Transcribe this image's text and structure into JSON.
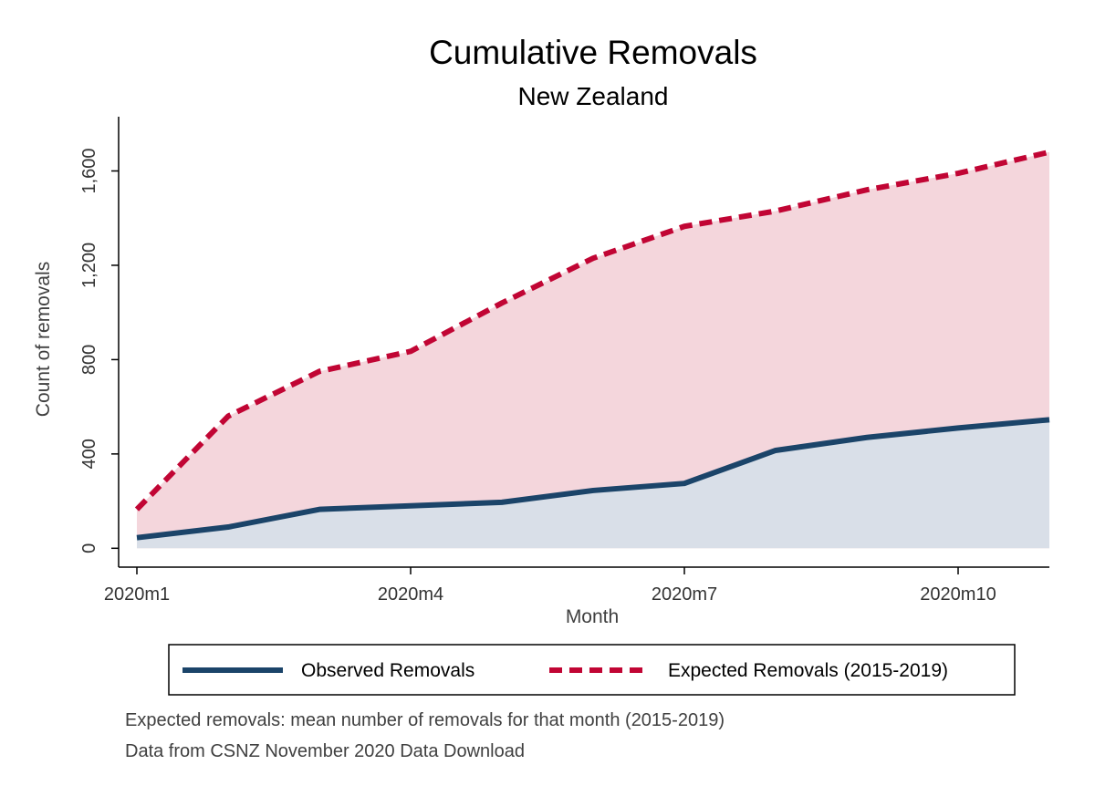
{
  "chart_data": {
    "type": "area",
    "title": "Cumulative Removals",
    "subtitle": "New Zealand",
    "xlabel": "Month",
    "ylabel": "Count of removals",
    "x": [
      "2020m1",
      "2020m2",
      "2020m3",
      "2020m4",
      "2020m5",
      "2020m6",
      "2020m7",
      "2020m8",
      "2020m9",
      "2020m10",
      "2020m11"
    ],
    "x_ticks": [
      "2020m1",
      "2020m4",
      "2020m7",
      "2020m10"
    ],
    "y_ticks": [
      0,
      400,
      800,
      1200,
      1600
    ],
    "y_tick_labels": [
      "0",
      "400",
      "800",
      "1,200",
      "1,600"
    ],
    "ylim": [
      -80,
      1830
    ],
    "grid": false,
    "legend_position": "bottom",
    "series": [
      {
        "name": "Observed Removals",
        "style": "solid",
        "color": "#1b4469",
        "fill_color": "#d9dfe8",
        "values": [
          45,
          90,
          165,
          180,
          195,
          245,
          275,
          415,
          470,
          510,
          545
        ]
      },
      {
        "name": "Expected Removals (2015-2019)",
        "style": "dashed",
        "color": "#c10534",
        "fill_color": "#f4d6dc",
        "values": [
          165,
          560,
          750,
          835,
          1040,
          1230,
          1365,
          1430,
          1520,
          1590,
          1680
        ]
      }
    ],
    "notes": [
      "Expected removals: mean number of removals for that month (2015-2019)",
      "Data from CSNZ November 2020 Data Download"
    ]
  }
}
